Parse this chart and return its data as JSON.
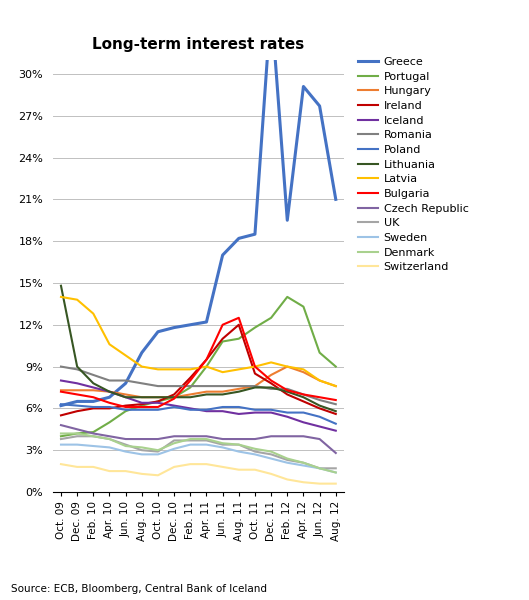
{
  "title": "Long-term interest rates",
  "source": "Source: ECB, Bloomberg, Central Bank of Iceland",
  "x_labels": [
    "Oct. 09",
    "Dec. 09",
    "Feb. 10",
    "Apr. 10",
    "Jun. 10",
    "Aug. 10",
    "Oct. 10",
    "Dec. 10",
    "Feb. 11",
    "Apr. 11",
    "Jun. 11",
    "Aug. 11",
    "Oct. 11",
    "Dec. 11",
    "Feb. 12",
    "Apr. 12",
    "Jun. 12",
    "Aug. 12"
  ],
  "ylim": [
    0,
    0.31
  ],
  "yticks": [
    0,
    0.03,
    0.06,
    0.09,
    0.12,
    0.15,
    0.18,
    0.21,
    0.24,
    0.27,
    0.3
  ],
  "figsize": [
    5.29,
    6.0
  ],
  "dpi": 100,
  "series": {
    "Greece": {
      "color": "#4472C4",
      "linewidth": 2.2,
      "data": [
        0.062,
        0.065,
        0.065,
        0.068,
        0.078,
        0.1,
        0.115,
        0.118,
        0.12,
        0.122,
        0.17,
        0.182,
        0.185,
        0.35,
        0.195,
        0.291,
        0.277,
        0.21
      ]
    },
    "Portugal": {
      "color": "#70AD47",
      "linewidth": 1.5,
      "data": [
        0.04,
        0.042,
        0.043,
        0.05,
        0.058,
        0.062,
        0.065,
        0.068,
        0.075,
        0.09,
        0.108,
        0.11,
        0.118,
        0.125,
        0.14,
        0.133,
        0.1,
        0.09
      ]
    },
    "Hungary": {
      "color": "#ED7D31",
      "linewidth": 1.5,
      "data": [
        0.073,
        0.073,
        0.073,
        0.072,
        0.07,
        0.068,
        0.068,
        0.068,
        0.07,
        0.072,
        0.072,
        0.074,
        0.076,
        0.084,
        0.09,
        0.086,
        0.08,
        0.076
      ]
    },
    "Ireland": {
      "color": "#C00000",
      "linewidth": 1.5,
      "data": [
        0.055,
        0.058,
        0.06,
        0.06,
        0.062,
        0.063,
        0.065,
        0.07,
        0.082,
        0.095,
        0.11,
        0.12,
        0.085,
        0.078,
        0.07,
        0.065,
        0.06,
        0.056
      ]
    },
    "Iceland": {
      "color": "#7030A0",
      "linewidth": 1.5,
      "data": [
        0.08,
        0.078,
        0.075,
        0.072,
        0.068,
        0.064,
        0.064,
        0.062,
        0.06,
        0.058,
        0.058,
        0.056,
        0.057,
        0.057,
        0.054,
        0.05,
        0.047,
        0.044
      ]
    },
    "Romania": {
      "color": "#808080",
      "linewidth": 1.5,
      "data": [
        0.09,
        0.088,
        0.084,
        0.08,
        0.08,
        0.078,
        0.076,
        0.076,
        0.076,
        0.076,
        0.076,
        0.076,
        0.076,
        0.074,
        0.074,
        0.07,
        0.066,
        0.063
      ]
    },
    "Poland": {
      "color": "#4472C4",
      "linewidth": 1.5,
      "data": [
        0.063,
        0.062,
        0.061,
        0.061,
        0.059,
        0.059,
        0.059,
        0.061,
        0.059,
        0.059,
        0.061,
        0.061,
        0.059,
        0.059,
        0.057,
        0.057,
        0.054,
        0.049
      ]
    },
    "Lithuania": {
      "color": "#375623",
      "linewidth": 1.5,
      "data": [
        0.148,
        0.09,
        0.078,
        0.072,
        0.068,
        0.068,
        0.068,
        0.068,
        0.068,
        0.07,
        0.07,
        0.072,
        0.075,
        0.075,
        0.072,
        0.068,
        0.062,
        0.058
      ]
    },
    "Latvia": {
      "color": "#FFC000",
      "linewidth": 1.5,
      "data": [
        0.14,
        0.138,
        0.128,
        0.106,
        0.098,
        0.09,
        0.088,
        0.088,
        0.088,
        0.09,
        0.086,
        0.088,
        0.09,
        0.093,
        0.09,
        0.088,
        0.08,
        0.076
      ]
    },
    "Bulgaria": {
      "color": "#FF0000",
      "linewidth": 1.5,
      "data": [
        0.072,
        0.07,
        0.068,
        0.064,
        0.061,
        0.061,
        0.061,
        0.067,
        0.08,
        0.095,
        0.12,
        0.125,
        0.09,
        0.08,
        0.073,
        0.07,
        0.068,
        0.066
      ]
    },
    "Czech Republic": {
      "color": "#8064A2",
      "linewidth": 1.5,
      "data": [
        0.048,
        0.045,
        0.042,
        0.04,
        0.038,
        0.038,
        0.038,
        0.04,
        0.04,
        0.04,
        0.038,
        0.038,
        0.038,
        0.04,
        0.04,
        0.04,
        0.038,
        0.028
      ]
    },
    "UK": {
      "color": "#A5A5A5",
      "linewidth": 1.5,
      "data": [
        0.038,
        0.04,
        0.04,
        0.038,
        0.034,
        0.03,
        0.029,
        0.037,
        0.037,
        0.037,
        0.034,
        0.034,
        0.029,
        0.027,
        0.023,
        0.021,
        0.017,
        0.017
      ]
    },
    "Sweden": {
      "color": "#9DC3E6",
      "linewidth": 1.5,
      "data": [
        0.034,
        0.034,
        0.033,
        0.032,
        0.029,
        0.027,
        0.027,
        0.031,
        0.034,
        0.034,
        0.032,
        0.029,
        0.027,
        0.024,
        0.021,
        0.019,
        0.017,
        0.014
      ]
    },
    "Denmark": {
      "color": "#A9D18E",
      "linewidth": 1.5,
      "data": [
        0.042,
        0.042,
        0.04,
        0.038,
        0.033,
        0.032,
        0.03,
        0.035,
        0.038,
        0.038,
        0.035,
        0.034,
        0.031,
        0.029,
        0.024,
        0.021,
        0.017,
        0.014
      ]
    },
    "Switzerland": {
      "color": "#FFE699",
      "linewidth": 1.5,
      "data": [
        0.02,
        0.018,
        0.018,
        0.015,
        0.015,
        0.013,
        0.012,
        0.018,
        0.02,
        0.02,
        0.018,
        0.016,
        0.016,
        0.013,
        0.009,
        0.007,
        0.006,
        0.006
      ]
    }
  }
}
